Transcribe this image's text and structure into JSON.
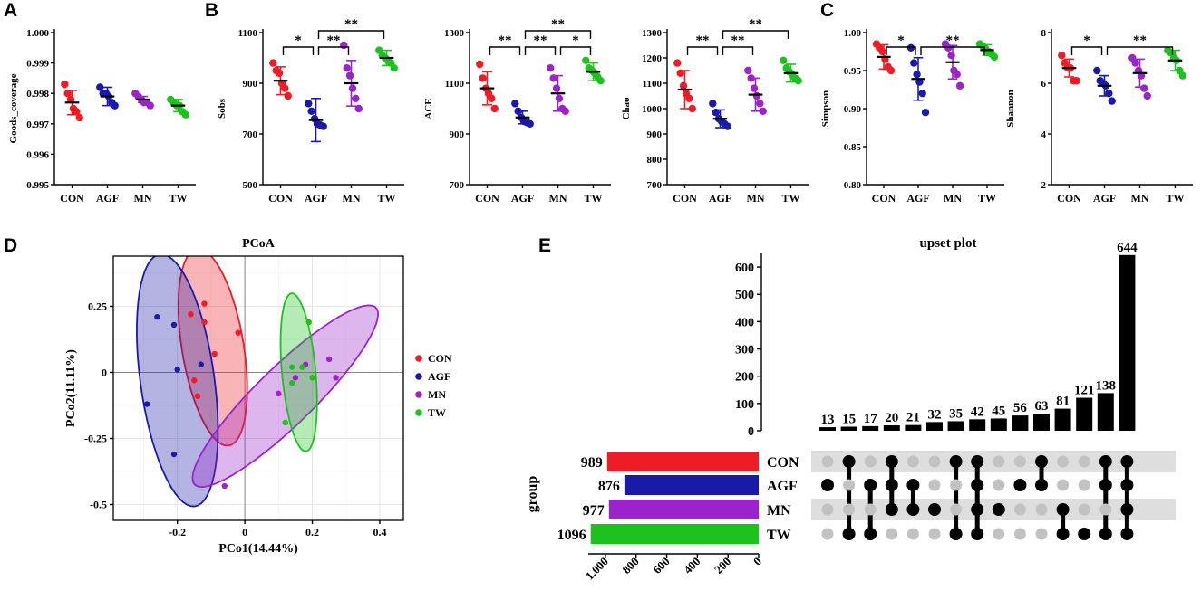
{
  "figure": {
    "panel_labels": [
      "A",
      "B",
      "C",
      "D",
      "E"
    ],
    "colors": {
      "CON": "#ee1c25",
      "AGF": "#1a1aa8",
      "MN": "#9c22cc",
      "TW": "#1ec21e"
    }
  },
  "chart_data": [
    {
      "type": "scatter",
      "name": "Goods_coverage",
      "panel": "A",
      "ylabel": "Goods_coverage",
      "categories": [
        "CON",
        "AGF",
        "MN",
        "TW"
      ],
      "ylim": [
        0.995,
        1.0
      ],
      "yticks": [
        0.995,
        0.996,
        0.997,
        0.998,
        0.999,
        1.0
      ],
      "yticklabels": [
        "0.995",
        "0.996",
        "0.997",
        "0.998",
        "0.999",
        "1.000"
      ],
      "means": [
        0.9977,
        0.9979,
        0.9978,
        0.9976
      ],
      "sds": [
        0.0004,
        0.0003,
        0.0001,
        0.0002
      ],
      "points": [
        [
          0.9983,
          0.998,
          0.9978,
          0.9975,
          0.9974,
          0.9972
        ],
        [
          0.9982,
          0.998,
          0.998,
          0.9979,
          0.9977,
          0.9976
        ],
        [
          0.998,
          0.9979,
          0.9978,
          0.9977,
          0.9977,
          0.9976
        ],
        [
          0.9978,
          0.9977,
          0.9976,
          0.9976,
          0.9974,
          0.9973
        ]
      ],
      "significance": []
    },
    {
      "type": "scatter",
      "name": "Sobs",
      "panel": "B",
      "ylabel": "Sobs",
      "categories": [
        "CON",
        "AGF",
        "MN",
        "TW"
      ],
      "ylim": [
        500,
        1100
      ],
      "yticks": [
        500,
        700,
        900,
        1100
      ],
      "yticklabels": [
        "500",
        "700",
        "900",
        "1100"
      ],
      "means": [
        910,
        755,
        900,
        1000
      ],
      "sds": [
        55,
        85,
        90,
        30
      ],
      "points": [
        [
          980,
          950,
          940,
          900,
          880,
          850
        ],
        [
          820,
          790,
          760,
          740,
          735,
          730
        ],
        [
          1050,
          960,
          930,
          880,
          840,
          800
        ],
        [
          1030,
          1010,
          1000,
          990,
          980,
          960
        ]
      ],
      "significance": [
        {
          "from": 0,
          "to": 1,
          "label": "*",
          "level": 0
        },
        {
          "from": 1,
          "to": 2,
          "label": "**",
          "level": 0
        },
        {
          "from": 1,
          "to": 3,
          "label": "**",
          "level": 1
        }
      ]
    },
    {
      "type": "scatter",
      "name": "ACE",
      "panel": "B",
      "ylabel": "ACE",
      "categories": [
        "CON",
        "AGF",
        "MN",
        "TW"
      ],
      "ylim": [
        700,
        1300
      ],
      "yticks": [
        700,
        900,
        1100,
        1300
      ],
      "yticklabels": [
        "700",
        "900",
        "1100",
        "1300"
      ],
      "means": [
        1080,
        965,
        1060,
        1145
      ],
      "sds": [
        65,
        25,
        70,
        35
      ],
      "points": [
        [
          1175,
          1120,
          1080,
          1060,
          1040,
          1000
        ],
        [
          1020,
          990,
          965,
          950,
          945,
          940
        ],
        [
          1160,
          1120,
          1080,
          1040,
          1000,
          990
        ],
        [
          1190,
          1160,
          1150,
          1140,
          1125,
          1110
        ]
      ],
      "significance": [
        {
          "from": 0,
          "to": 1,
          "label": "**",
          "level": 0
        },
        {
          "from": 1,
          "to": 2,
          "label": "**",
          "level": 0
        },
        {
          "from": 2,
          "to": 3,
          "label": "*",
          "level": 0
        },
        {
          "from": 1,
          "to": 3,
          "label": "**",
          "level": 1
        }
      ]
    },
    {
      "type": "scatter",
      "name": "Chao",
      "panel": "B",
      "ylabel": "Chao",
      "categories": [
        "CON",
        "AGF",
        "MN",
        "TW"
      ],
      "ylim": [
        700,
        1300
      ],
      "yticks": [
        700,
        800,
        900,
        1000,
        1100,
        1200,
        1300
      ],
      "yticklabels": [
        "700",
        "800",
        "900",
        "1000",
        "1100",
        "1200",
        "1300"
      ],
      "means": [
        1075,
        960,
        1055,
        1140
      ],
      "sds": [
        75,
        35,
        65,
        35
      ],
      "points": [
        [
          1180,
          1140,
          1090,
          1060,
          1040,
          1000
        ],
        [
          1020,
          985,
          960,
          950,
          940,
          930
        ],
        [
          1150,
          1120,
          1080,
          1050,
          1020,
          990
        ],
        [
          1190,
          1160,
          1145,
          1135,
          1120,
          1110
        ]
      ],
      "significance": [
        {
          "from": 0,
          "to": 1,
          "label": "**",
          "level": 0
        },
        {
          "from": 1,
          "to": 2,
          "label": "**",
          "level": 0
        },
        {
          "from": 1,
          "to": 3,
          "label": "**",
          "level": 1
        }
      ]
    },
    {
      "type": "scatter",
      "name": "Simpson",
      "panel": "C",
      "ylabel": "Simpson",
      "categories": [
        "CON",
        "AGF",
        "MN",
        "TW"
      ],
      "ylim": [
        0.8,
        1.0
      ],
      "yticks": [
        0.8,
        0.85,
        0.9,
        0.95,
        1.0
      ],
      "yticklabels": [
        "0.80",
        "0.85",
        "0.90",
        "0.95",
        "1.00"
      ],
      "means": [
        0.968,
        0.939,
        0.961,
        0.977
      ],
      "sds": [
        0.016,
        0.028,
        0.022,
        0.007
      ],
      "points": [
        [
          0.985,
          0.98,
          0.975,
          0.965,
          0.955,
          0.95
        ],
        [
          0.98,
          0.96,
          0.945,
          0.935,
          0.92,
          0.895
        ],
        [
          0.985,
          0.98,
          0.97,
          0.95,
          0.945,
          0.93
        ],
        [
          0.985,
          0.982,
          0.978,
          0.975,
          0.972,
          0.968
        ]
      ],
      "significance": [
        {
          "from": 0,
          "to": 1,
          "label": "*",
          "level": 0
        },
        {
          "from": 1,
          "to": 3,
          "label": "**",
          "level": 0
        }
      ]
    },
    {
      "type": "scatter",
      "name": "Shannon",
      "panel": "C",
      "ylabel": "Shannon",
      "categories": [
        "CON",
        "AGF",
        "MN",
        "TW"
      ],
      "ylim": [
        2,
        8
      ],
      "yticks": [
        2,
        4,
        6,
        8
      ],
      "yticklabels": [
        "2",
        "4",
        "6",
        "8"
      ],
      "means": [
        6.6,
        5.9,
        6.4,
        6.9
      ],
      "sds": [
        0.35,
        0.4,
        0.55,
        0.4
      ],
      "points": [
        [
          7.1,
          6.8,
          6.6,
          6.6,
          6.1,
          6.1
        ],
        [
          6.5,
          6.1,
          6.0,
          5.9,
          5.6,
          5.3
        ],
        [
          7.0,
          6.8,
          6.5,
          6.3,
          5.8,
          5.5
        ],
        [
          7.3,
          7.2,
          7.0,
          6.9,
          6.5,
          6.3
        ]
      ],
      "significance": [
        {
          "from": 0,
          "to": 1,
          "label": "*",
          "level": 0
        },
        {
          "from": 1,
          "to": 3,
          "label": "**",
          "level": 0
        }
      ]
    },
    {
      "type": "scatter",
      "name": "PCoA",
      "panel": "D",
      "title": "PCoA",
      "xlabel": "PCo1(14.44%)",
      "ylabel": "PCo2(11.11%)",
      "xlim": [
        -0.39,
        0.47
      ],
      "ylim": [
        -0.56,
        0.44
      ],
      "xticks": [
        -0.2,
        0,
        0.2,
        0.4
      ],
      "xticklabels": [
        "-0.2",
        "0",
        "0.2",
        "0.4"
      ],
      "yticks": [
        -0.5,
        -0.25,
        0,
        0.25
      ],
      "yticklabels": [
        "-0.5",
        "-0.25",
        "0",
        "0.25"
      ],
      "legend": [
        "CON",
        "AGF",
        "MN",
        "TW"
      ],
      "groups": [
        {
          "name": "CON",
          "points": [
            [
              -0.12,
              0.26
            ],
            [
              -0.16,
              0.22
            ],
            [
              -0.12,
              0.19
            ],
            [
              -0.02,
              0.15
            ],
            [
              -0.09,
              0.07
            ],
            [
              -0.15,
              -0.03
            ],
            [
              -0.14,
              -0.09
            ]
          ],
          "ellipse": {
            "cx": -0.095,
            "cy": 0.095,
            "rx": 0.092,
            "ry": 0.375,
            "angle": 7
          }
        },
        {
          "name": "AGF",
          "points": [
            [
              -0.26,
              0.21
            ],
            [
              -0.21,
              0.18
            ],
            [
              -0.13,
              0.03
            ],
            [
              -0.2,
              0.01
            ],
            [
              -0.29,
              -0.12
            ],
            [
              -0.21,
              -0.31
            ]
          ],
          "ellipse": {
            "cx": -0.2,
            "cy": -0.03,
            "rx": 0.11,
            "ry": 0.48,
            "angle": 6
          }
        },
        {
          "name": "MN",
          "points": [
            [
              0.25,
              0.05
            ],
            [
              0.27,
              -0.02
            ],
            [
              0.18,
              0.03
            ],
            [
              0.1,
              -0.08
            ],
            [
              0.15,
              -0.02
            ],
            [
              -0.06,
              -0.43
            ]
          ],
          "ellipse": {
            "cx": 0.12,
            "cy": -0.09,
            "rx": 0.43,
            "ry": 0.095,
            "angle": 52
          }
        },
        {
          "name": "TW",
          "points": [
            [
              0.19,
              0.19
            ],
            [
              0.17,
              0.02
            ],
            [
              0.14,
              0.02
            ],
            [
              0.2,
              -0.02
            ],
            [
              0.14,
              -0.04
            ],
            [
              0.12,
              -0.19
            ]
          ],
          "ellipse": {
            "cx": 0.16,
            "cy": 0.0,
            "rx": 0.05,
            "ry": 0.3,
            "angle": 4
          }
        }
      ]
    },
    {
      "type": "bar",
      "name": "upset plot",
      "panel": "E",
      "title": "upset plot",
      "ylim": [
        0,
        650
      ],
      "yticks": [
        0,
        100,
        200,
        300,
        400,
        500,
        600
      ],
      "yticklabels": [
        "0",
        "100",
        "200",
        "300",
        "400",
        "500",
        "600"
      ],
      "values": [
        13,
        15,
        17,
        20,
        21,
        32,
        35,
        42,
        45,
        56,
        63,
        81,
        121,
        138,
        644
      ],
      "sets": [
        "CON",
        "AGF",
        "MN",
        "TW"
      ],
      "intersections": [
        [
          "AGF"
        ],
        [
          "CON",
          "TW"
        ],
        [
          "AGF",
          "TW"
        ],
        [
          "CON",
          "AGF",
          "MN"
        ],
        [
          "AGF",
          "MN"
        ],
        [
          "MN"
        ],
        [
          "CON",
          "TW"
        ],
        [
          "CON",
          "AGF",
          "MN",
          "TW"
        ],
        [
          "MN"
        ],
        [
          "AGF"
        ],
        [
          "CON",
          "AGF"
        ],
        [
          "MN",
          "TW"
        ],
        [
          "TW"
        ],
        [
          "CON",
          "AGF",
          "TW"
        ],
        [
          "CON",
          "AGF",
          "MN",
          "TW"
        ]
      ]
    },
    {
      "type": "bar",
      "name": "set sizes",
      "panel": "E",
      "orientation": "horizontal",
      "ylabel": "group",
      "categories": [
        "CON",
        "AGF",
        "MN",
        "TW"
      ],
      "values": [
        989,
        876,
        977,
        1096
      ],
      "xlim": [
        0,
        1100
      ],
      "xticks": [
        1000,
        800,
        600,
        400,
        200,
        0
      ],
      "xticklabels": [
        "1,000",
        "800",
        "600",
        "400",
        "200",
        "0"
      ]
    }
  ]
}
